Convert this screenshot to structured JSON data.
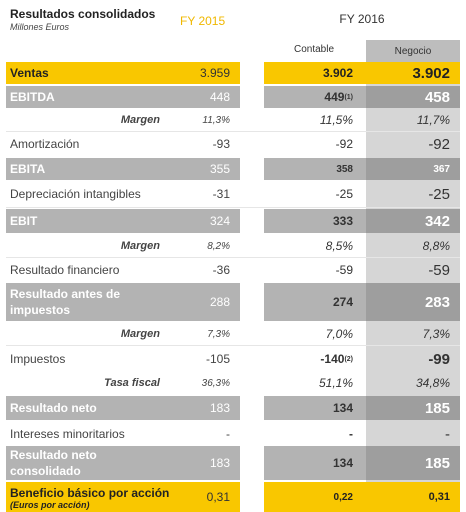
{
  "header": {
    "title": "Resultados consolidados",
    "subtitle": "Millones Euros",
    "fy2015": "FY 2015",
    "fy2016": "FY 2016",
    "col_contable": "Contable",
    "col_negocio": "Negocio"
  },
  "rows": [
    {
      "label": "Ventas",
      "fy2015": "3.959",
      "contable": "3.902",
      "negocio": "3.902"
    },
    {
      "label": "EBITDA",
      "fy2015": "448",
      "contable": "449",
      "contable_note": "(1)",
      "negocio": "458"
    },
    {
      "label": "Margen",
      "fy2015": "11,3%",
      "contable": "11,5%",
      "negocio": "11,7%"
    },
    {
      "label": "Amortización",
      "fy2015": "-93",
      "contable": "-92",
      "negocio": "-92"
    },
    {
      "label": "EBITA",
      "fy2015": "355",
      "contable": "358",
      "negocio": "367"
    },
    {
      "label": "Depreciación intangibles",
      "fy2015": "-31",
      "contable": "-25",
      "negocio": "-25"
    },
    {
      "label": "EBIT",
      "fy2015": "324",
      "contable": "333",
      "negocio": "342"
    },
    {
      "label": "Margen",
      "fy2015": "8,2%",
      "contable": "8,5%",
      "negocio": "8,8%"
    },
    {
      "label": "Resultado financiero",
      "fy2015": "-36",
      "contable": "-59",
      "negocio": "-59"
    },
    {
      "label": "Resultado antes de impuestos",
      "fy2015": "288",
      "contable": "274",
      "negocio": "283"
    },
    {
      "label": "Margen",
      "fy2015": "7,3%",
      "contable": "7,0%",
      "negocio": "7,3%"
    },
    {
      "label": "Impuestos",
      "fy2015": "-105",
      "contable": "-140",
      "contable_note": "(2)",
      "negocio": "-99"
    },
    {
      "label": "Tasa fiscal",
      "fy2015": "36,3%",
      "contable": "51,1%",
      "negocio": "34,8%"
    },
    {
      "label": "Resultado neto",
      "fy2015": "183",
      "contable": "134",
      "negocio": "185"
    },
    {
      "label": "Intereses minoritarios",
      "fy2015": "-",
      "contable": "-",
      "negocio": "-"
    },
    {
      "label": "Resultado neto consolidado",
      "fy2015": "183",
      "contable": "134",
      "negocio": "185"
    },
    {
      "label": "Beneficio básico por acción",
      "sublabel": "(Euros por acción)",
      "fy2015": "0,31",
      "contable": "0,22",
      "negocio": "0,31"
    }
  ]
}
